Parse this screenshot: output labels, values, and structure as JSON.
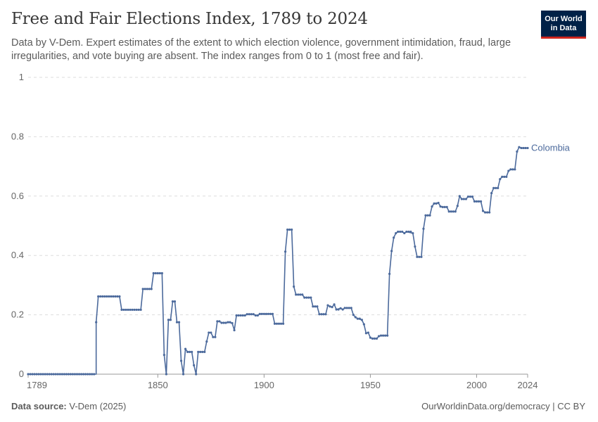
{
  "header": {
    "title": "Free and Fair Elections Index, 1789 to 2024",
    "subtitle": "Data by V-Dem. Expert estimates of the extent to which election violence, government intimidation, fraud, large irregularities, and vote buying are absent. The index ranges from 0 to 1 (most free and fair).",
    "logo_line1": "Our World",
    "logo_line2": "in Data"
  },
  "footer": {
    "source_label": "Data source:",
    "source_value": "V-Dem (2025)",
    "credit": "OurWorldinData.org/democracy | CC BY"
  },
  "colors": {
    "series": "#4c6a9c",
    "grid": "#dddddd",
    "brand_bg": "#002147",
    "brand_accent": "#ce261e"
  },
  "chart_data": {
    "type": "line",
    "title": "Free and Fair Elections Index, 1789 to 2024",
    "xlabel": "",
    "ylabel": "",
    "xlim": [
      1789,
      2024
    ],
    "ylim": [
      0,
      1
    ],
    "x_ticks": [
      1789,
      1850,
      1900,
      1950,
      2000,
      2024
    ],
    "y_ticks": [
      0,
      0.2,
      0.4,
      0.6,
      0.8,
      1
    ],
    "y_tick_labels": [
      "0",
      "0.2",
      "0.4",
      "0.6",
      "0.8",
      "1"
    ],
    "grid": true,
    "series": [
      {
        "name": "Colombia",
        "points": [
          [
            1789,
            0
          ],
          [
            1821,
            0
          ],
          [
            1821,
            0.175
          ],
          [
            1822,
            0.262
          ],
          [
            1832,
            0.262
          ],
          [
            1833,
            0.217
          ],
          [
            1842,
            0.217
          ],
          [
            1843,
            0.287
          ],
          [
            1847,
            0.287
          ],
          [
            1848,
            0.34
          ],
          [
            1852,
            0.34
          ],
          [
            1853,
            0.065
          ],
          [
            1854,
            0
          ],
          [
            1855,
            0.183
          ],
          [
            1856,
            0.183
          ],
          [
            1857,
            0.245
          ],
          [
            1858,
            0.245
          ],
          [
            1859,
            0.175
          ],
          [
            1860,
            0.175
          ],
          [
            1861,
            0.045
          ],
          [
            1862,
            0
          ],
          [
            1863,
            0.085
          ],
          [
            1864,
            0.075
          ],
          [
            1866,
            0.075
          ],
          [
            1867,
            0.03
          ],
          [
            1868,
            0
          ],
          [
            1869,
            0.075
          ],
          [
            1872,
            0.075
          ],
          [
            1873,
            0.11
          ],
          [
            1874,
            0.14
          ],
          [
            1875,
            0.14
          ],
          [
            1876,
            0.125
          ],
          [
            1877,
            0.125
          ],
          [
            1878,
            0.178
          ],
          [
            1879,
            0.178
          ],
          [
            1880,
            0.173
          ],
          [
            1882,
            0.173
          ],
          [
            1883,
            0.175
          ],
          [
            1885,
            0.172
          ],
          [
            1886,
            0.148
          ],
          [
            1887,
            0.198
          ],
          [
            1891,
            0.198
          ],
          [
            1892,
            0.202
          ],
          [
            1895,
            0.202
          ],
          [
            1896,
            0.198
          ],
          [
            1897,
            0.198
          ],
          [
            1898,
            0.203
          ],
          [
            1904,
            0.203
          ],
          [
            1905,
            0.17
          ],
          [
            1909,
            0.17
          ],
          [
            1910,
            0.413
          ],
          [
            1911,
            0.487
          ],
          [
            1913,
            0.487
          ],
          [
            1914,
            0.295
          ],
          [
            1915,
            0.268
          ],
          [
            1918,
            0.268
          ],
          [
            1919,
            0.258
          ],
          [
            1922,
            0.258
          ],
          [
            1923,
            0.228
          ],
          [
            1925,
            0.228
          ],
          [
            1926,
            0.202
          ],
          [
            1929,
            0.202
          ],
          [
            1930,
            0.232
          ],
          [
            1931,
            0.228
          ],
          [
            1932,
            0.226
          ],
          [
            1933,
            0.235
          ],
          [
            1934,
            0.218
          ],
          [
            1936,
            0.222
          ],
          [
            1937,
            0.218
          ],
          [
            1938,
            0.223
          ],
          [
            1941,
            0.223
          ],
          [
            1942,
            0.2
          ],
          [
            1943,
            0.192
          ],
          [
            1944,
            0.187
          ],
          [
            1946,
            0.183
          ],
          [
            1947,
            0.168
          ],
          [
            1948,
            0.138
          ],
          [
            1949,
            0.14
          ],
          [
            1950,
            0.123
          ],
          [
            1951,
            0.12
          ],
          [
            1953,
            0.12
          ],
          [
            1954,
            0.128
          ],
          [
            1955,
            0.13
          ],
          [
            1958,
            0.13
          ],
          [
            1959,
            0.338
          ],
          [
            1960,
            0.415
          ],
          [
            1961,
            0.46
          ],
          [
            1962,
            0.475
          ],
          [
            1963,
            0.48
          ],
          [
            1965,
            0.48
          ],
          [
            1966,
            0.475
          ],
          [
            1967,
            0.48
          ],
          [
            1970,
            0.475
          ],
          [
            1971,
            0.43
          ],
          [
            1972,
            0.395
          ],
          [
            1974,
            0.395
          ],
          [
            1975,
            0.49
          ],
          [
            1976,
            0.535
          ],
          [
            1978,
            0.535
          ],
          [
            1979,
            0.565
          ],
          [
            1980,
            0.575
          ],
          [
            1982,
            0.577
          ],
          [
            1983,
            0.565
          ],
          [
            1984,
            0.563
          ],
          [
            1986,
            0.563
          ],
          [
            1987,
            0.548
          ],
          [
            1990,
            0.548
          ],
          [
            1991,
            0.567
          ],
          [
            1992,
            0.6
          ],
          [
            1993,
            0.59
          ],
          [
            1995,
            0.59
          ],
          [
            1996,
            0.598
          ],
          [
            1998,
            0.598
          ],
          [
            1999,
            0.582
          ],
          [
            2002,
            0.582
          ],
          [
            2003,
            0.55
          ],
          [
            2004,
            0.545
          ],
          [
            2006,
            0.545
          ],
          [
            2007,
            0.61
          ],
          [
            2008,
            0.627
          ],
          [
            2010,
            0.627
          ],
          [
            2011,
            0.657
          ],
          [
            2012,
            0.665
          ],
          [
            2014,
            0.665
          ],
          [
            2015,
            0.685
          ],
          [
            2016,
            0.69
          ],
          [
            2018,
            0.69
          ],
          [
            2019,
            0.75
          ],
          [
            2020,
            0.765
          ],
          [
            2021,
            0.762
          ],
          [
            2024,
            0.762
          ]
        ]
      }
    ]
  }
}
